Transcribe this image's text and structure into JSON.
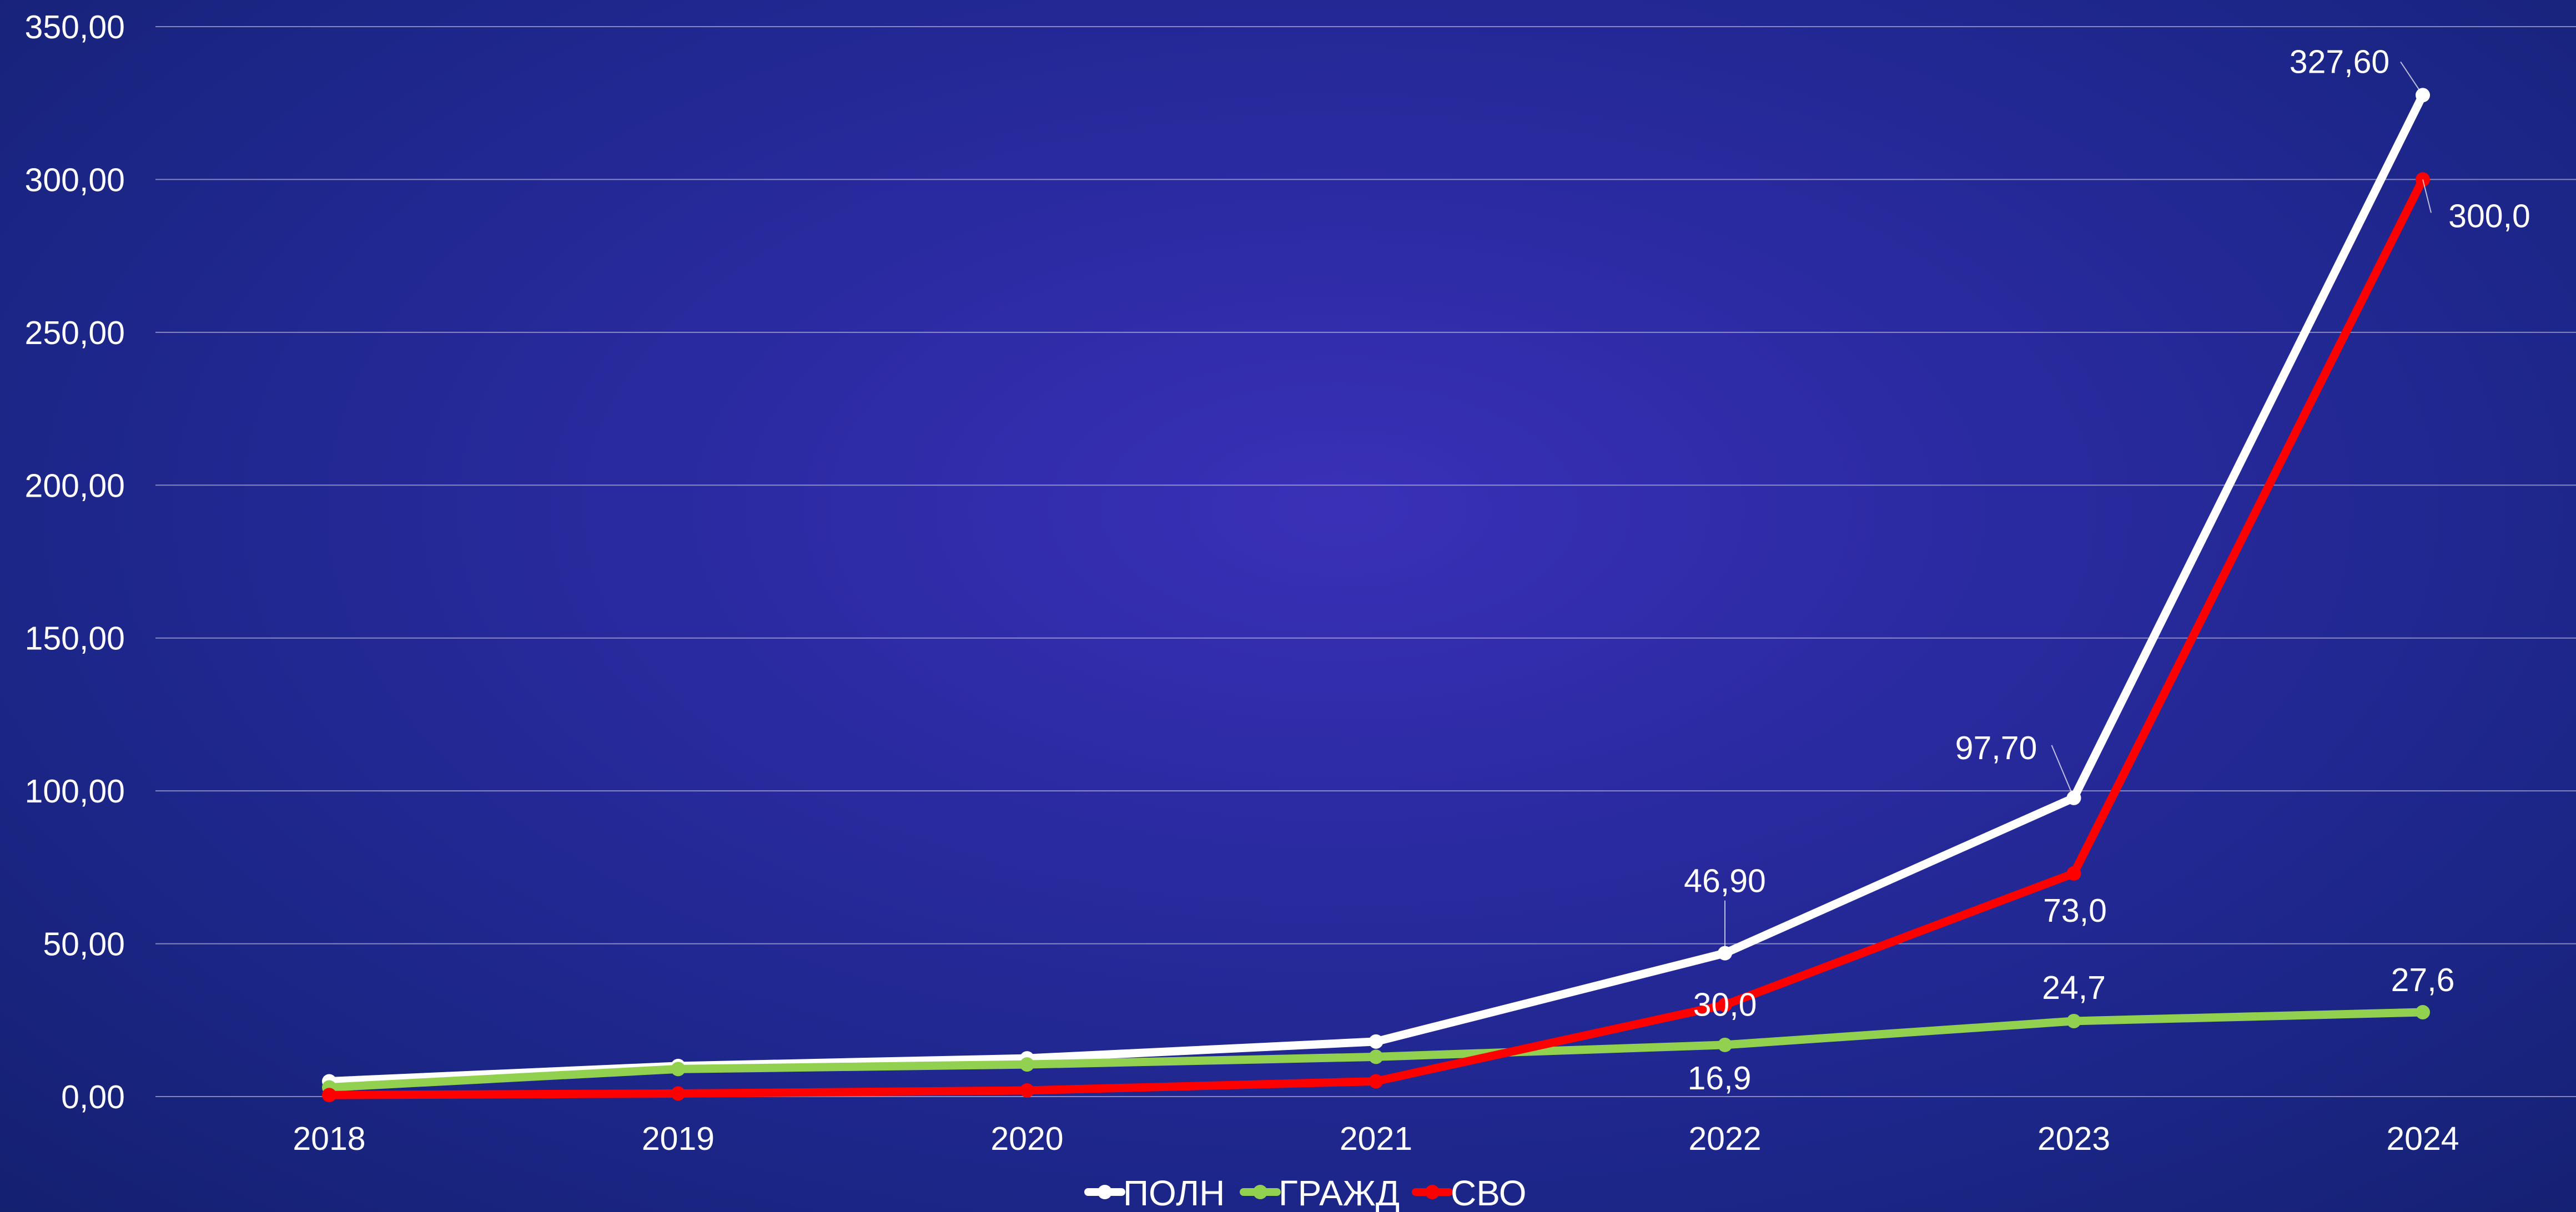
{
  "chart_data": {
    "type": "line",
    "categories": [
      "2018",
      "2019",
      "2020",
      "2021",
      "2022",
      "2023",
      "2024"
    ],
    "ylim": [
      0,
      350
    ],
    "y_ticks": [
      "0,00",
      "50,00",
      "100,00",
      "150,00",
      "200,00",
      "250,00",
      "300,00",
      "350,00"
    ],
    "grid": true,
    "legend_position": "bottom",
    "series": [
      {
        "name": "ПОЛН",
        "color": "#ffffff",
        "values": [
          5.0,
          10.0,
          12.5,
          18.0,
          46.9,
          97.7,
          327.6
        ],
        "labels": [
          null,
          null,
          null,
          null,
          "46,90",
          "97,70",
          "327,60"
        ]
      },
      {
        "name": "ГРАЖД",
        "color": "#92d050",
        "values": [
          3.0,
          9.0,
          10.5,
          13.0,
          16.9,
          24.7,
          27.6
        ],
        "labels": [
          null,
          null,
          null,
          null,
          "16,9",
          "24,7",
          "27,6"
        ]
      },
      {
        "name": "СВО",
        "color": "#ff0000",
        "values": [
          0.5,
          1.0,
          2.0,
          5.0,
          30.0,
          73.0,
          300.0
        ],
        "labels": [
          null,
          null,
          null,
          null,
          "30,0",
          "73,0",
          "300,0"
        ]
      }
    ]
  }
}
